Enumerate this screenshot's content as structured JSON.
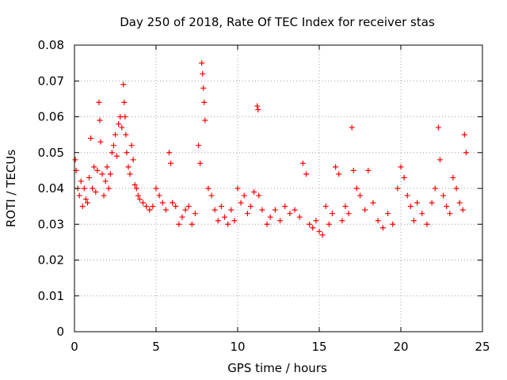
{
  "chart_data": {
    "type": "scatter",
    "title": "Day 250 of 2018, Rate Of TEC Index for receiver stas",
    "xlabel": "GPS time / hours",
    "ylabel": "ROTI / TECUs",
    "xlim": [
      0,
      25
    ],
    "ylim": [
      0,
      0.08
    ],
    "xticks": [
      0,
      5,
      10,
      15,
      20,
      25
    ],
    "xtick_labels": [
      "0",
      "5",
      "10",
      "15",
      "20",
      "25"
    ],
    "yticks": [
      0,
      0.01,
      0.02,
      0.03,
      0.04,
      0.05,
      0.06,
      0.07,
      0.08
    ],
    "ytick_labels": [
      "0",
      "0.01",
      "0.02",
      "0.03",
      "0.04",
      "0.05",
      "0.06",
      "0.07",
      "0.08"
    ],
    "grid": true,
    "marker": "+",
    "marker_color": "#ff0000",
    "series": [
      {
        "name": "ROTI",
        "x": [
          0.05,
          0.1,
          0.2,
          0.3,
          0.4,
          0.5,
          0.6,
          0.7,
          0.8,
          0.9,
          1.0,
          1.1,
          1.2,
          1.3,
          1.4,
          1.5,
          1.55,
          1.6,
          1.7,
          1.8,
          1.9,
          2.0,
          2.1,
          2.2,
          2.3,
          2.4,
          2.5,
          2.6,
          2.7,
          2.8,
          2.9,
          3.0,
          3.05,
          3.1,
          3.15,
          3.2,
          3.3,
          3.4,
          3.5,
          3.6,
          3.7,
          3.8,
          3.9,
          4.0,
          4.2,
          4.4,
          4.6,
          4.8,
          5.0,
          5.2,
          5.4,
          5.6,
          5.8,
          5.9,
          6.0,
          6.2,
          6.4,
          6.6,
          6.8,
          7.0,
          7.2,
          7.4,
          7.6,
          7.7,
          7.8,
          7.85,
          7.9,
          7.95,
          8.0,
          8.2,
          8.4,
          8.6,
          8.8,
          9.0,
          9.2,
          9.4,
          9.6,
          9.8,
          10.0,
          10.2,
          10.4,
          10.6,
          10.8,
          11.0,
          11.2,
          11.25,
          11.3,
          11.5,
          11.8,
          12.0,
          12.3,
          12.6,
          12.9,
          13.2,
          13.5,
          13.8,
          14.0,
          14.2,
          14.4,
          14.6,
          14.8,
          15.0,
          15.2,
          15.4,
          15.6,
          15.8,
          16.0,
          16.2,
          16.4,
          16.6,
          16.8,
          17.0,
          17.1,
          17.3,
          17.5,
          17.8,
          18.0,
          18.3,
          18.6,
          18.9,
          19.2,
          19.5,
          19.8,
          20.0,
          20.2,
          20.4,
          20.6,
          20.8,
          21.0,
          21.3,
          21.6,
          21.9,
          22.1,
          22.3,
          22.4,
          22.6,
          22.8,
          23.0,
          23.2,
          23.4,
          23.6,
          23.8,
          23.9,
          24.0
        ],
        "y": [
          0.048,
          0.045,
          0.04,
          0.038,
          0.042,
          0.035,
          0.04,
          0.037,
          0.036,
          0.043,
          0.054,
          0.04,
          0.046,
          0.039,
          0.045,
          0.064,
          0.059,
          0.053,
          0.044,
          0.038,
          0.042,
          0.046,
          0.04,
          0.044,
          0.05,
          0.052,
          0.055,
          0.049,
          0.058,
          0.06,
          0.057,
          0.069,
          0.064,
          0.06,
          0.055,
          0.05,
          0.046,
          0.044,
          0.052,
          0.048,
          0.041,
          0.04,
          0.038,
          0.037,
          0.036,
          0.035,
          0.034,
          0.035,
          0.04,
          0.038,
          0.036,
          0.034,
          0.05,
          0.047,
          0.036,
          0.035,
          0.03,
          0.032,
          0.034,
          0.035,
          0.03,
          0.033,
          0.052,
          0.047,
          0.075,
          0.072,
          0.068,
          0.064,
          0.059,
          0.04,
          0.038,
          0.034,
          0.031,
          0.035,
          0.032,
          0.03,
          0.034,
          0.031,
          0.04,
          0.036,
          0.038,
          0.033,
          0.035,
          0.039,
          0.063,
          0.062,
          0.038,
          0.034,
          0.03,
          0.032,
          0.034,
          0.031,
          0.035,
          0.033,
          0.034,
          0.032,
          0.047,
          0.044,
          0.03,
          0.029,
          0.031,
          0.028,
          0.027,
          0.035,
          0.03,
          0.033,
          0.046,
          0.044,
          0.031,
          0.035,
          0.033,
          0.057,
          0.045,
          0.04,
          0.038,
          0.034,
          0.045,
          0.036,
          0.031,
          0.029,
          0.033,
          0.03,
          0.04,
          0.046,
          0.043,
          0.038,
          0.035,
          0.031,
          0.036,
          0.033,
          0.03,
          0.036,
          0.04,
          0.057,
          0.048,
          0.038,
          0.035,
          0.033,
          0.043,
          0.04,
          0.036,
          0.034,
          0.055,
          0.05
        ]
      }
    ]
  }
}
